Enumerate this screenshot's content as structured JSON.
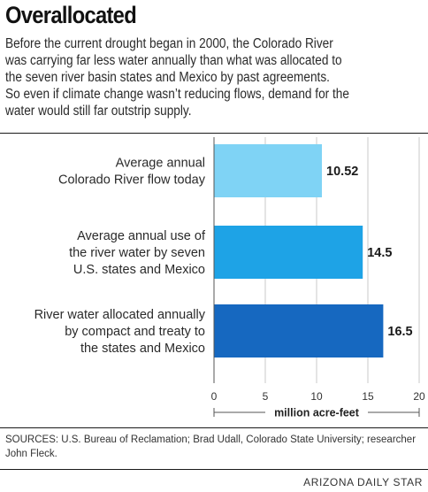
{
  "header": {
    "title": "Overallocated",
    "intro_lines": [
      "Before the current drought began in 2000, the Colorado River",
      "was carrying far less water annually than what was allocated to",
      "the seven river basin states and Mexico by past agreements.",
      "So even if climate change wasn’t reducing flows, demand for the",
      "water would still far outstrip supply."
    ]
  },
  "chart_data": {
    "type": "bar",
    "orientation": "horizontal",
    "categories": [
      [
        "Average annual",
        "Colorado River flow today"
      ],
      [
        "Average annual use of",
        "the river water by seven",
        "U.S. states and Mexico"
      ],
      [
        "River water allocated annually",
        "by compact and treaty to",
        "the states and Mexico"
      ]
    ],
    "values": [
      10.52,
      14.5,
      16.5
    ],
    "value_labels": [
      "10.52",
      "14.5",
      "16.5"
    ],
    "bar_colors": [
      "#7fd3f5",
      "#1ea3e6",
      "#1668c0"
    ],
    "xlim": [
      0,
      20
    ],
    "xticks": [
      0,
      5,
      10,
      15,
      20
    ],
    "xlabel": "million acre-feet",
    "grid": true
  },
  "footer": {
    "sources": "SOURCES: U.S. Bureau of Reclamation; Brad Udall, Colorado State University; researcher John Fleck.",
    "credit": "ARIZONA DAILY STAR"
  }
}
